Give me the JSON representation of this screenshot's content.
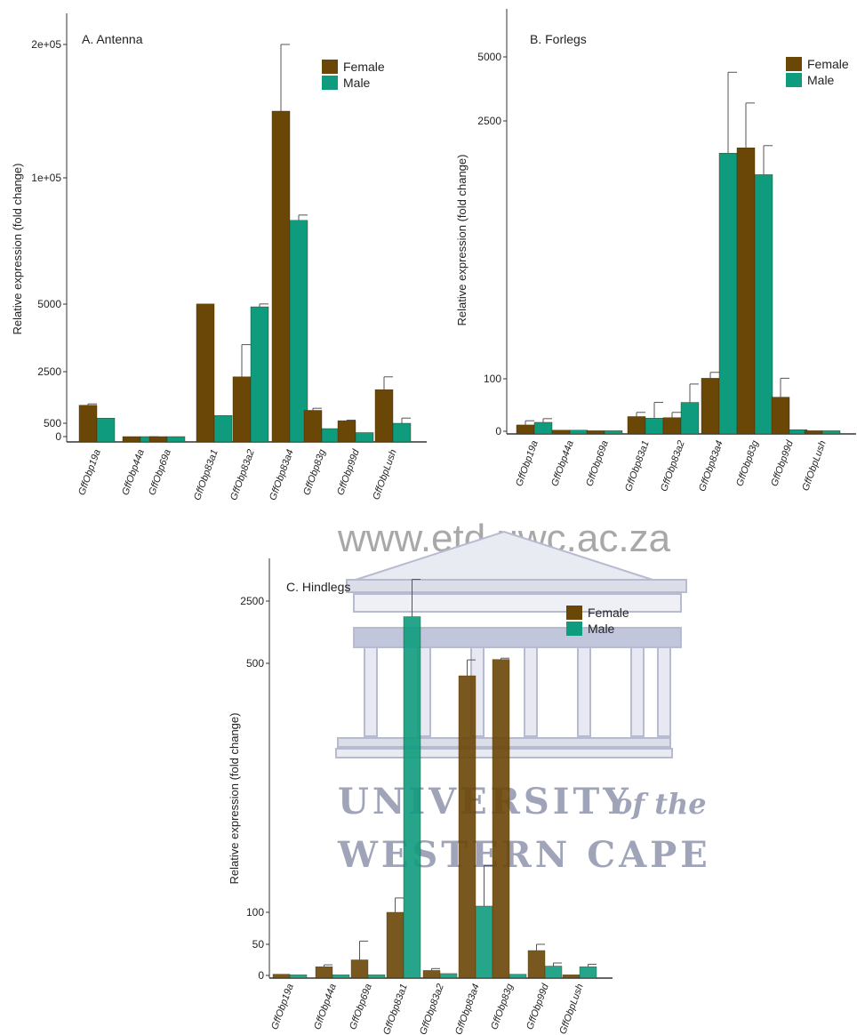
{
  "colors": {
    "female": "#6b4707",
    "male": "#0f9c7e"
  },
  "watermark": {
    "url": "www.etd.uwc.ac.za",
    "line1": "UNIVERSITY",
    "line1_suffix": "of the",
    "line2": "WESTERN CAPE"
  },
  "chart_data": [
    {
      "type": "bar",
      "title": "A. Antenna",
      "ylabel": "Relative expression (fold change)",
      "xlabel": "",
      "y_scale": "piecewise (broken axis)",
      "ytick_labels": [
        "0",
        "500",
        "2500",
        "5000",
        "1e+05",
        "2e+05"
      ],
      "ytick_values": [
        0,
        500,
        2500,
        5000,
        100000,
        200000
      ],
      "legend_position": "top-right",
      "categories": [
        "GffObp19a",
        "GffObp44a",
        "GffObp69a",
        "GffObp83a1",
        "GffObp83a2",
        "GffObp83a4",
        "GffObp83g",
        "GffObp99d",
        "GffObpLush"
      ],
      "series": [
        {
          "name": "Female",
          "values": [
            1200,
            0,
            0,
            5100,
            2300,
            150000,
            1000,
            600,
            1800
          ],
          "errors": [
            50,
            0,
            0,
            0,
            1200,
            50000,
            80,
            20,
            500
          ]
        },
        {
          "name": "Male",
          "values": [
            700,
            0,
            0,
            800,
            4900,
            68000,
            300,
            150,
            500
          ],
          "errors": [
            0,
            0,
            0,
            0,
            200,
            4000,
            0,
            0,
            200
          ]
        }
      ]
    },
    {
      "type": "bar",
      "title": "B. Forlegs",
      "ylabel": "Relative expression (fold change)",
      "xlabel": "",
      "y_scale": "piecewise (broken axis)",
      "ytick_labels": [
        "0",
        "100",
        "2500",
        "5000"
      ],
      "ytick_values": [
        0,
        100,
        2500,
        5000
      ],
      "legend_position": "top-right",
      "categories": [
        "GffObp19a",
        "GffObp44a",
        "GffObp69a",
        "GffObp83a1",
        "GffObp83a2",
        "GffObp83a4",
        "GffObp83g",
        "GffObp99d",
        "GffObpLush"
      ],
      "series": [
        {
          "name": "Female",
          "values": [
            12,
            2,
            1,
            28,
            26,
            105,
            2250,
            65,
            1
          ],
          "errors": [
            8,
            0,
            0,
            8,
            10,
            55,
            950,
            40,
            0
          ]
        },
        {
          "name": "Male",
          "values": [
            17,
            2,
            1,
            25,
            55,
            2200,
            2000,
            3,
            1
          ],
          "errors": [
            7,
            0,
            0,
            30,
            35,
            2200,
            270,
            0,
            0
          ]
        }
      ]
    },
    {
      "type": "bar",
      "title": "C. Hindlegs",
      "ylabel": "Relative expression (fold change)",
      "xlabel": "",
      "y_scale": "piecewise (broken axis)",
      "ytick_labels": [
        "0",
        "50",
        "100",
        "500",
        "2500"
      ],
      "ytick_values": [
        0,
        50,
        100,
        500,
        2500
      ],
      "legend_position": "top-right",
      "categories": [
        "GffObp19a",
        "GffObp44a",
        "GffObp69a",
        "GffObp83a1",
        "GffObp83a2",
        "GffObp83a4",
        "GffObp83g",
        "GffObp99d",
        "GffObpLush"
      ],
      "series": [
        {
          "name": "Female",
          "values": [
            2,
            14,
            25,
            100,
            8,
            480,
            625,
            40,
            1
          ],
          "errors": [
            0,
            3,
            30,
            23,
            3,
            130,
            40,
            10,
            0
          ]
        },
        {
          "name": "Male",
          "values": [
            1,
            1,
            1,
            2000,
            3,
            110,
            2,
            15,
            14
          ],
          "errors": [
            0,
            0,
            0,
            1200,
            0,
            65,
            0,
            5,
            4
          ]
        }
      ]
    }
  ]
}
